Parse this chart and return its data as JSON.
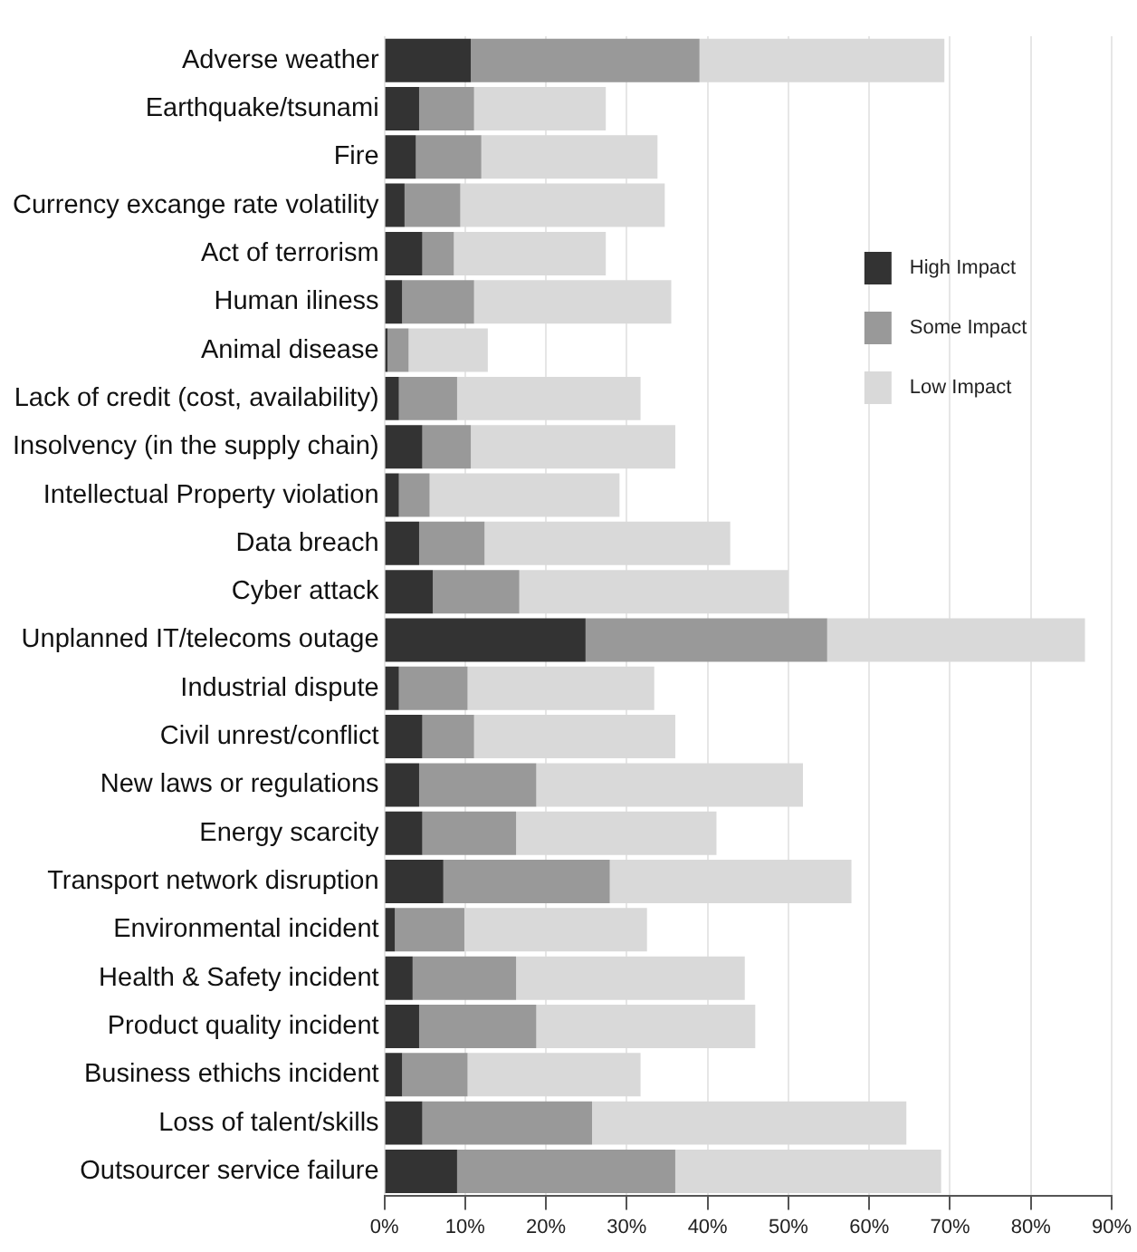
{
  "chart_data": {
    "type": "bar",
    "orientation": "horizontal",
    "stacked": true,
    "categories": [
      "Adverse weather",
      "Earthquake/tsunami",
      "Fire",
      "Currency excange rate volatility",
      "Act of terrorism",
      "Human iliness",
      "Animal disease",
      "Lack of credit (cost, availability)",
      "Insolvency (in the supply chain)",
      "Intellectual Property violation",
      "Data breach",
      "Cyber attack",
      "Unplanned IT/telecoms outage",
      "Industrial dispute",
      "Civil unrest/conflict",
      "New laws or regulations",
      "Energy scarcity",
      "Transport network disruption",
      "Environmental incident",
      "Health & Safety incident",
      "Product quality incident",
      "Business ethichs incident",
      "Loss of talent/skills",
      "Outsourcer service failure"
    ],
    "series": [
      {
        "name": "High Impact",
        "color": "#333333",
        "values": [
          10.7,
          4.3,
          3.9,
          2.5,
          4.7,
          2.2,
          0.4,
          1.8,
          4.7,
          1.8,
          4.3,
          6.0,
          24.9,
          1.8,
          4.7,
          4.3,
          4.7,
          7.3,
          1.3,
          3.5,
          4.3,
          2.2,
          4.7,
          9.0
        ]
      },
      {
        "name": "Some Impact",
        "color": "#999999",
        "values": [
          28.3,
          6.8,
          8.1,
          6.9,
          3.9,
          8.9,
          2.6,
          7.2,
          6.0,
          3.8,
          8.1,
          10.7,
          29.9,
          8.5,
          6.4,
          14.5,
          11.6,
          20.6,
          8.6,
          12.8,
          14.5,
          8.1,
          21.0,
          27.0
        ]
      },
      {
        "name": "Low Impact",
        "color": "#d9d9d9",
        "values": [
          30.3,
          16.3,
          21.8,
          25.3,
          18.8,
          24.4,
          9.8,
          22.7,
          25.3,
          23.5,
          30.4,
          33.3,
          31.9,
          23.1,
          24.9,
          33.0,
          24.8,
          29.9,
          22.6,
          28.3,
          27.1,
          21.4,
          38.9,
          32.9
        ]
      }
    ],
    "xlim": [
      0,
      90
    ],
    "xticks": [
      {
        "value": 0,
        "label": "0%"
      },
      {
        "value": 10,
        "label": "10%"
      },
      {
        "value": 20,
        "label": "20%"
      },
      {
        "value": 30,
        "label": "30%"
      },
      {
        "value": 40,
        "label": "40%"
      },
      {
        "value": 50,
        "label": "50%"
      },
      {
        "value": 60,
        "label": "60%"
      },
      {
        "value": 70,
        "label": "70%"
      },
      {
        "value": 80,
        "label": "80%"
      },
      {
        "value": 90,
        "label": "90%"
      }
    ],
    "grid": "x",
    "legend": "top right"
  }
}
